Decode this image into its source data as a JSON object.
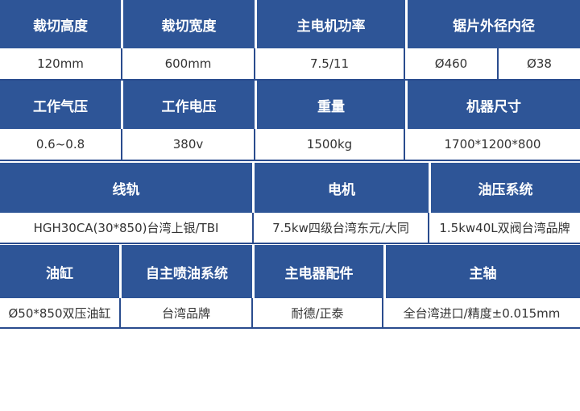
{
  "rows": [
    {
      "type": "header",
      "cells": [
        "裁切高度",
        "裁切宽度",
        "主电机功率",
        "锯片外径内径"
      ]
    },
    {
      "type": "value",
      "cells": [
        "120mm",
        "600mm",
        "7.5/11",
        "Ø460",
        "Ø38"
      ]
    },
    {
      "type": "header",
      "cells": [
        "工作气压",
        "工作电压",
        "重量",
        "机器尺寸"
      ]
    },
    {
      "type": "value",
      "cells": [
        "0.6~0.8",
        "380v",
        "1500kg",
        "1700*1200*800"
      ]
    },
    {
      "type": "header",
      "cells": [
        "线轨",
        "电机",
        "油压系统"
      ]
    },
    {
      "type": "value",
      "cells": [
        "HGH30CA(30*850)台湾上银/TBI",
        "7.5kw四级台湾东元/大同",
        "1.5kw40L双阀台湾品牌"
      ]
    },
    {
      "type": "header",
      "cells": [
        "油缸",
        "自主喷油系统",
        "主电器配件",
        "主轴"
      ]
    },
    {
      "type": "value",
      "cells": [
        "Ø50*850双压油缸",
        "台湾品牌",
        "耐德/正泰",
        "全台湾进口/精度±0.015mm"
      ]
    }
  ],
  "colors": {
    "header_bg": "#2e5597",
    "border": "#2a4c8e",
    "header_text": "#ffffff",
    "value_text": "#333333"
  }
}
